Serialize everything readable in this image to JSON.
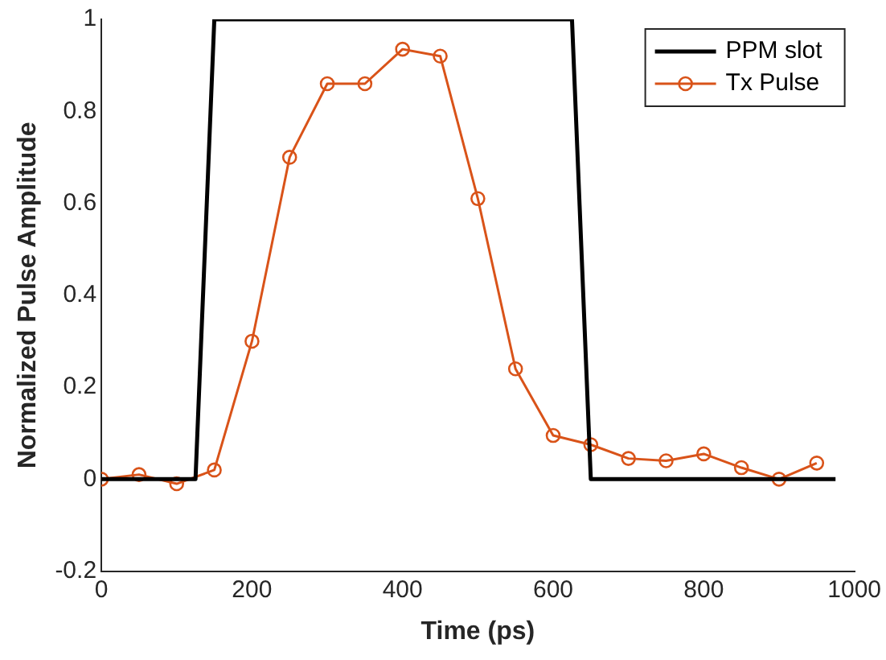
{
  "chart_data": {
    "type": "line",
    "xlabel": "Time (ps)",
    "ylabel": "Normalized Pulse Amplitude",
    "xlim": [
      0,
      1000
    ],
    "xticks": [
      0,
      200,
      400,
      600,
      800,
      1000
    ],
    "ylim": [
      -0.2,
      1
    ],
    "yticks": [
      -0.2,
      0,
      0.2,
      0.4,
      0.6,
      0.8,
      1
    ],
    "grid": false,
    "legend": "top right",
    "series": [
      {
        "name": "PPM slot",
        "color": "#000000",
        "marker": "none",
        "x": [
          0,
          125,
          150,
          625,
          650,
          975
        ],
        "values": [
          0,
          0,
          1,
          1,
          0,
          0
        ]
      },
      {
        "name": "Tx Pulse",
        "color": "#d95319",
        "marker": "circle",
        "x": [
          0,
          50,
          100,
          150,
          200,
          250,
          300,
          350,
          400,
          450,
          500,
          550,
          600,
          650,
          700,
          750,
          800,
          850,
          900,
          950
        ],
        "values": [
          0,
          0.01,
          -0.01,
          0.02,
          0.3,
          0.7,
          0.86,
          0.86,
          0.935,
          0.92,
          0.61,
          0.24,
          0.095,
          0.075,
          0.045,
          0.04,
          0.055,
          0.025,
          0,
          0.035
        ]
      }
    ]
  }
}
